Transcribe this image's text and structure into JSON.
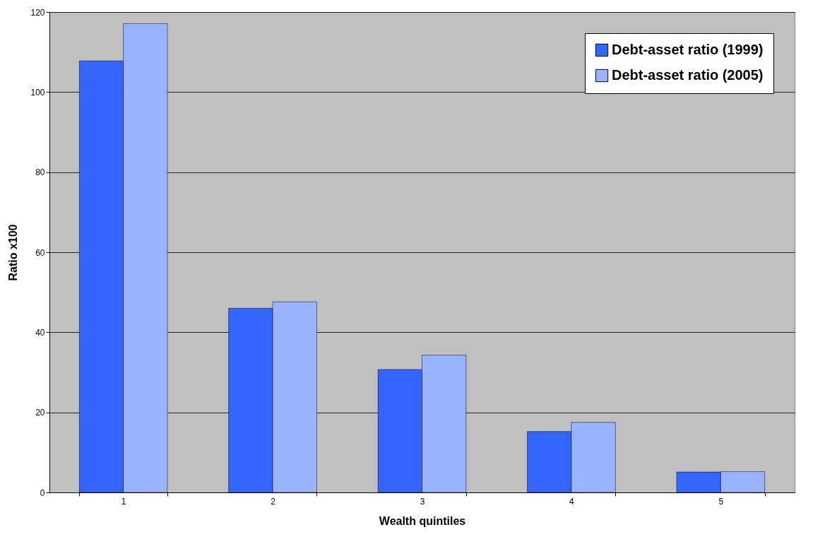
{
  "chart_data": {
    "type": "bar",
    "xlabel": "Wealth quintiles",
    "ylabel": "Ratio x100",
    "categories": [
      "1",
      "2",
      "3",
      "4",
      "5"
    ],
    "series": [
      {
        "name": "Debt-asset ratio (1999)",
        "color": "#3366ff",
        "values": [
          107.8,
          46.0,
          30.7,
          15.2,
          5.1
        ]
      },
      {
        "name": "Debt-asset ratio (2005)",
        "color": "#99b3ff",
        "values": [
          117.1,
          47.6,
          34.3,
          17.5,
          5.2
        ]
      }
    ],
    "ylim": [
      0,
      120
    ],
    "yticks": [
      0,
      20,
      40,
      60,
      80,
      100,
      120
    ],
    "grid": "y",
    "legend": "top right"
  }
}
